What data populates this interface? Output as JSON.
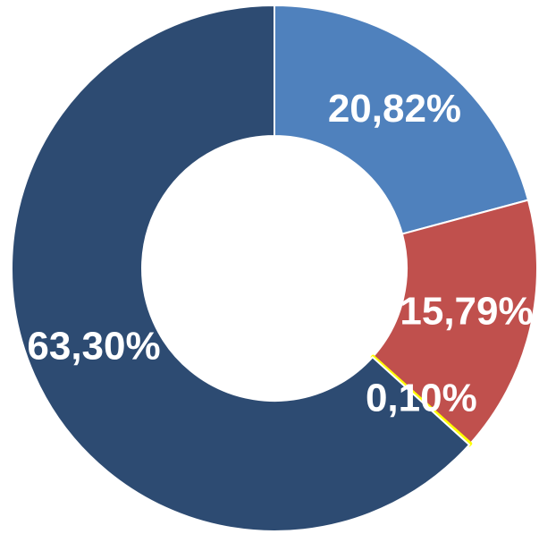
{
  "chart_data": {
    "type": "donut",
    "categories": [
      null,
      null,
      null,
      null
    ],
    "values": [
      20.82,
      15.79,
      0.1,
      63.3
    ],
    "value_labels": [
      "20,82%",
      "15,79%",
      "0,10%",
      "63,30%"
    ],
    "colors": [
      "#4f81bd",
      "#c0504d",
      "#ffff00",
      "#2d4b72"
    ]
  }
}
